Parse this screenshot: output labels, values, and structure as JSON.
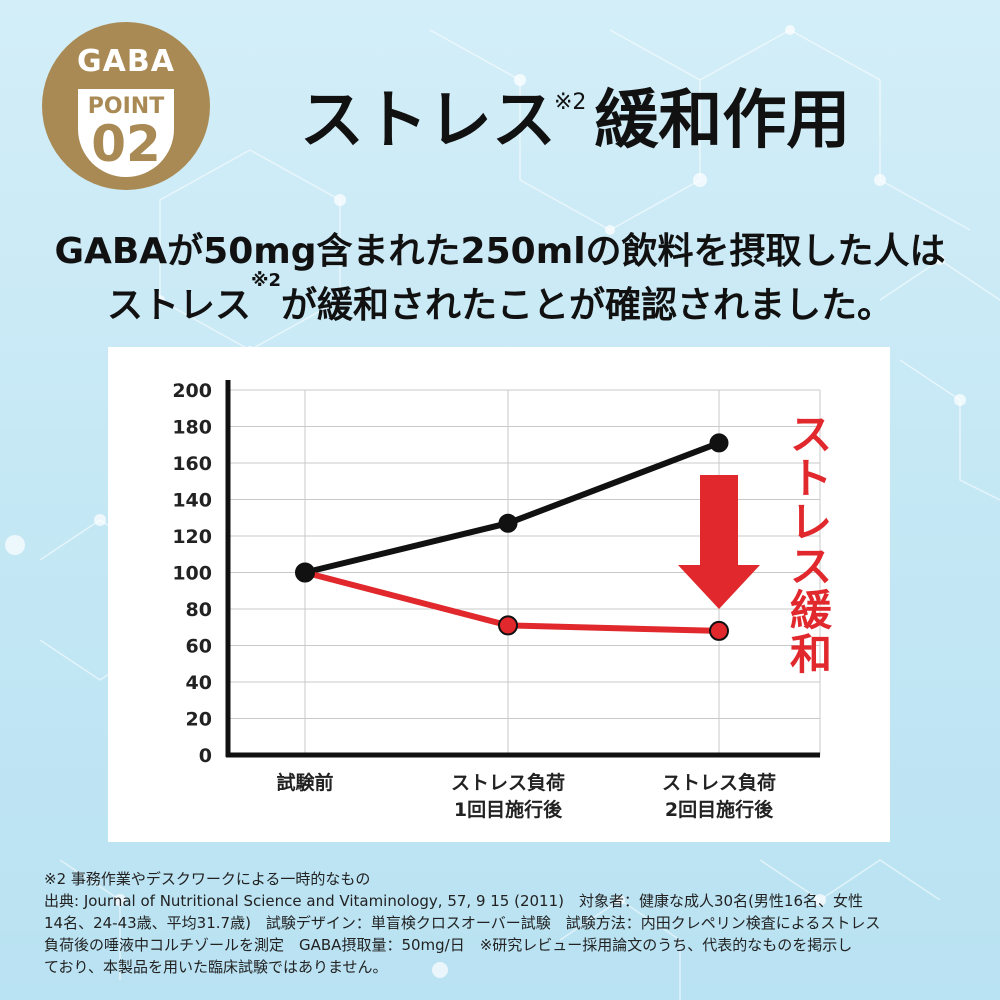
{
  "badge": {
    "top": "GABA",
    "point": "POINT",
    "number": "02"
  },
  "title": {
    "main": "ストレス",
    "sup": "※2",
    "rest": "緩和作用"
  },
  "lead": {
    "line1": "GABAが50mg含まれた250mlの飲料を摂取した人は",
    "line2_a": "ストレス",
    "line2_sup": "※2",
    "line2_b": "が緩和されたことが確認されました。"
  },
  "chart_data": {
    "type": "line",
    "categories": [
      "試験前",
      "ストレス負荷\n1回目施行後",
      "ストレス負荷\n2回目施行後"
    ],
    "series": [
      {
        "name": "",
        "color": "#111111",
        "values": [
          100,
          127,
          171
        ]
      },
      {
        "name": "",
        "color": "#e0282d",
        "values": [
          100,
          71,
          68
        ]
      }
    ],
    "yticks": [
      0,
      20,
      40,
      60,
      80,
      100,
      120,
      140,
      160,
      180,
      200
    ],
    "ylim": [
      0,
      200
    ],
    "grid": true,
    "annotation": "ストレス緩和",
    "annotation_color": "#e0282d"
  },
  "notes": {
    "line1": "※2 事務作業やデスクワークによる一時的なもの",
    "line2": "出典: Journal of Nutritional Science and Vitaminology, 57, 9 15 (2011)　対象者：健康な成人30名(男性16名、女性",
    "line3": "14名、24-43歳、平均31.7歳)　試験デザイン：単盲検クロスオーバー試験　試験方法：内田クレペリン検査によるストレス",
    "line4": "負荷後の唾液中コルチゾールを測定　GABA摂取量：50mg/日　※研究レビュー採用論文のうち、代表的なものを掲示し",
    "line5": "ており、本製品を用いた臨床試験ではありません。"
  }
}
